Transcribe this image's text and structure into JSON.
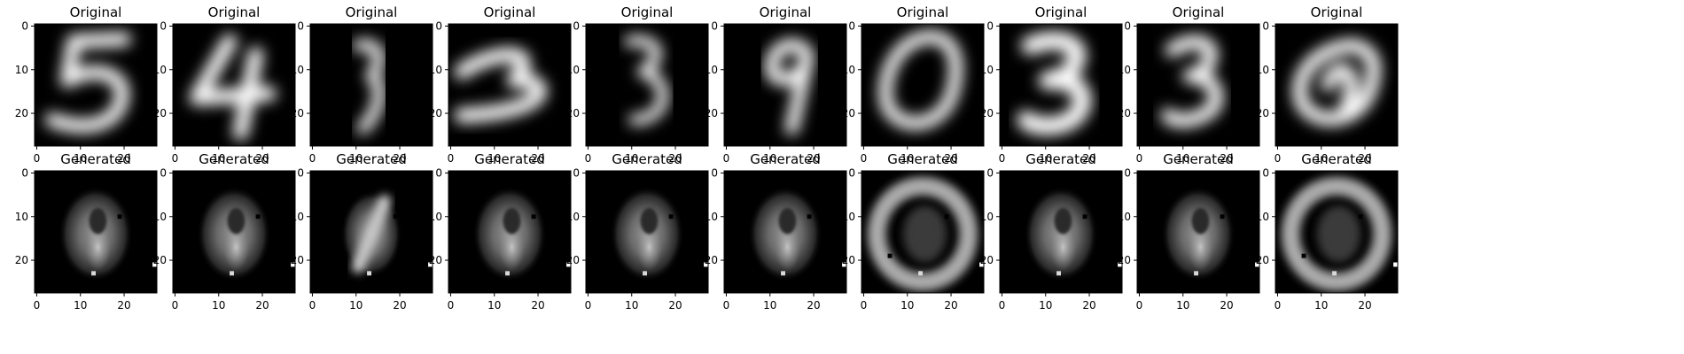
{
  "chart_data": {
    "type": "image-grid",
    "rows": [
      {
        "title": "Original",
        "panels": [
          {
            "digit": "5"
          },
          {
            "digit": "4"
          },
          {
            "digit": "3"
          },
          {
            "digit": "3"
          },
          {
            "digit": "3"
          },
          {
            "digit": "9"
          },
          {
            "digit": "0"
          },
          {
            "digit": "3"
          },
          {
            "digit": "3"
          },
          {
            "digit": "0"
          }
        ]
      },
      {
        "title": "Generated",
        "panels": [
          {
            "style": "blob"
          },
          {
            "style": "blob"
          },
          {
            "style": "slash"
          },
          {
            "style": "blob"
          },
          {
            "style": "blob"
          },
          {
            "style": "blob"
          },
          {
            "style": "ring"
          },
          {
            "style": "blob"
          },
          {
            "style": "blob"
          },
          {
            "style": "ring"
          }
        ]
      }
    ],
    "image_size": [
      28,
      28
    ],
    "xticks": [
      "0",
      "10",
      "20"
    ],
    "yticks": [
      "0",
      "10",
      "20"
    ],
    "cmap": "gray"
  }
}
